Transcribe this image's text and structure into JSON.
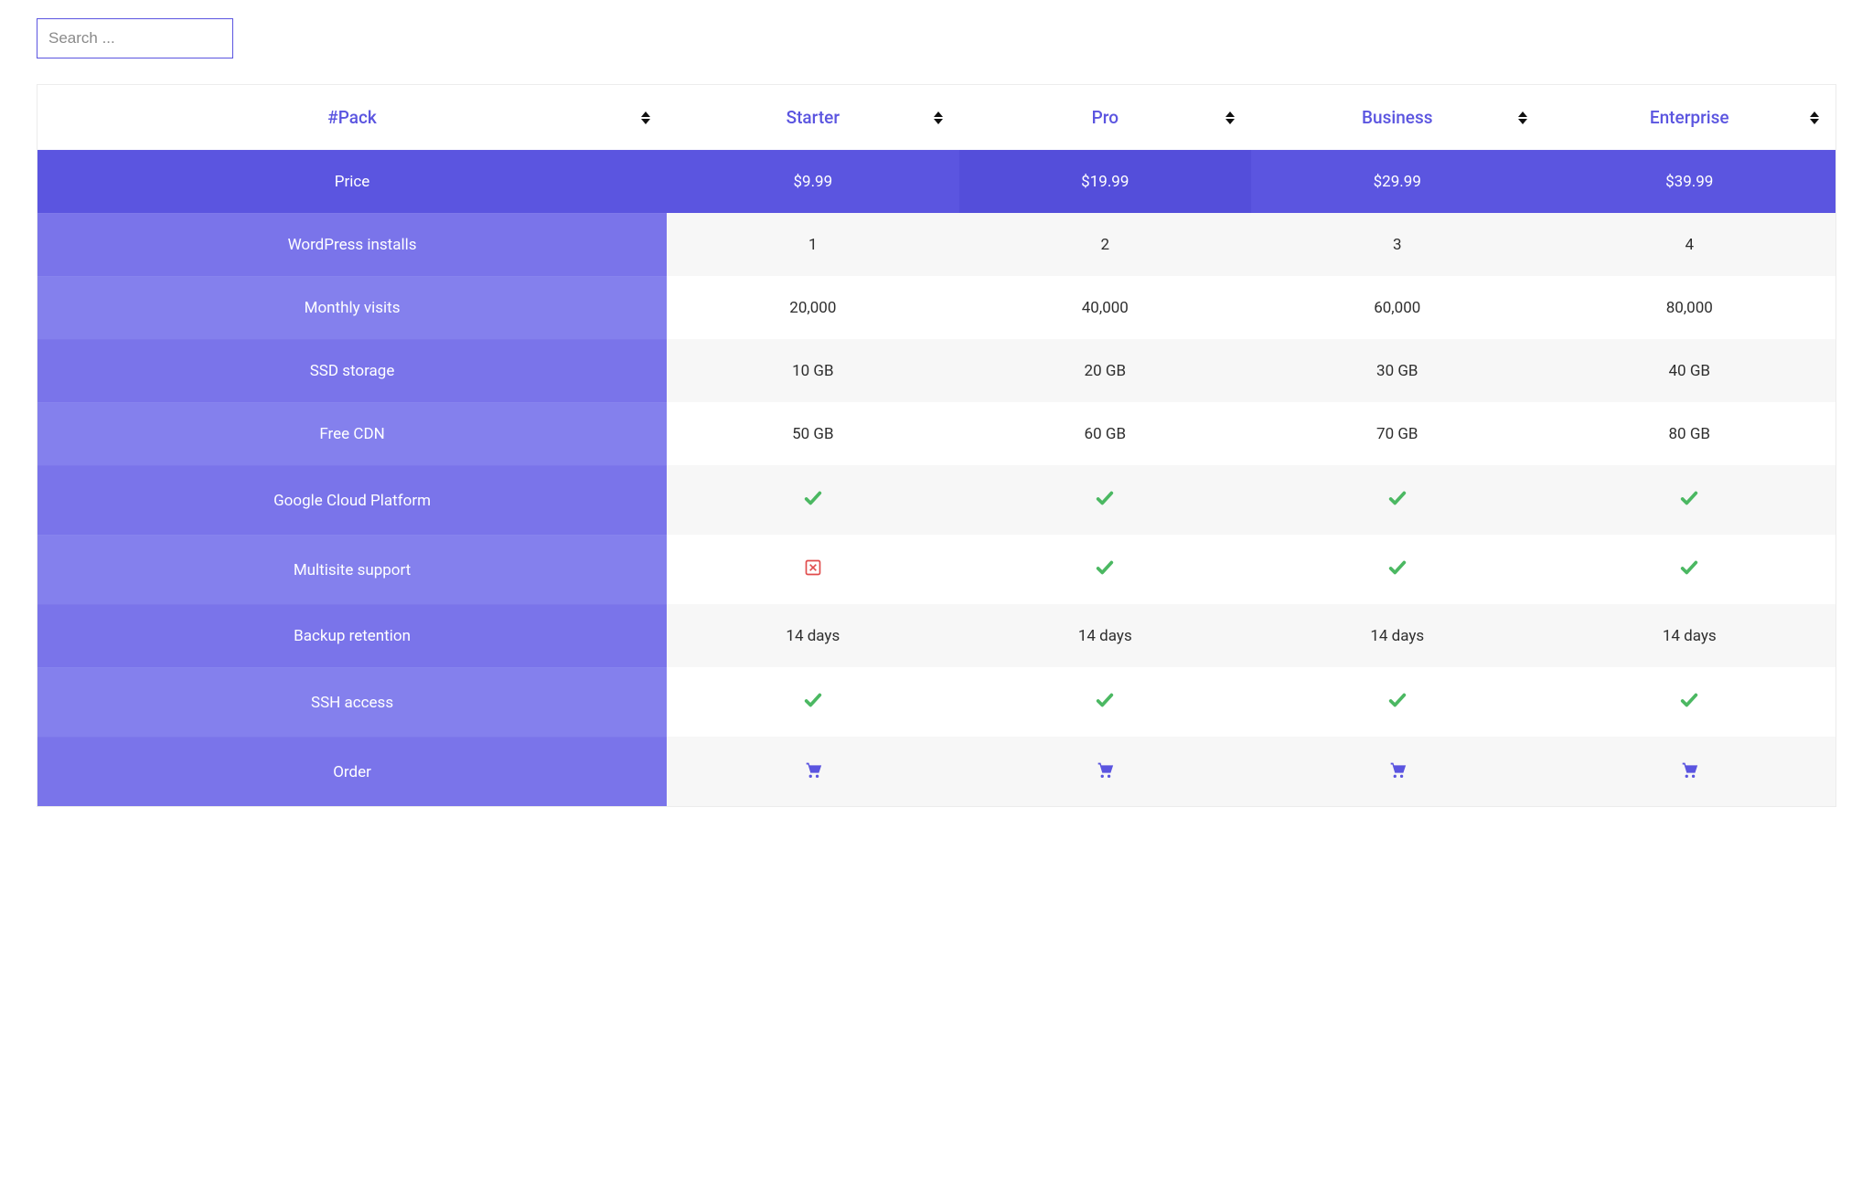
{
  "search": {
    "placeholder": "Search ..."
  },
  "colors": {
    "accent": "#5b55e0",
    "accent_dark": "#544eda",
    "row_label": "#7a74ea",
    "row_label_alt": "#8480ed",
    "stripe_even": "#f7f7f7",
    "stripe_odd": "#ffffff",
    "border": "#ececec",
    "check": "#4bb862",
    "cross": "#e04b4b",
    "cart": "#5b55e0",
    "sort_icon": "#111111",
    "text": "#2e2e2e",
    "header_text": "#5b55e0"
  },
  "table": {
    "type": "pricing-table",
    "headers": [
      "#Pack",
      "Starter",
      "Pro",
      "Business",
      "Enterprise"
    ],
    "label_col_width_pct": 35,
    "rows": [
      {
        "label": "Price",
        "type": "price",
        "values": [
          "$9.99",
          "$19.99",
          "$29.99",
          "$39.99"
        ],
        "highlight_col": 1
      },
      {
        "label": "WordPress installs",
        "type": "text",
        "values": [
          "1",
          "2",
          "3",
          "4"
        ]
      },
      {
        "label": "Monthly visits",
        "type": "text",
        "values": [
          "20,000",
          "40,000",
          "60,000",
          "80,000"
        ]
      },
      {
        "label": "SSD storage",
        "type": "text",
        "values": [
          "10 GB",
          "20 GB",
          "30 GB",
          "40 GB"
        ]
      },
      {
        "label": "Free CDN",
        "type": "text",
        "values": [
          "50 GB",
          "60 GB",
          "70 GB",
          "80 GB"
        ]
      },
      {
        "label": "Google Cloud Platform",
        "type": "bool",
        "values": [
          true,
          true,
          true,
          true
        ]
      },
      {
        "label": "Multisite support",
        "type": "bool",
        "values": [
          false,
          true,
          true,
          true
        ]
      },
      {
        "label": "Backup retention",
        "type": "text",
        "values": [
          "14 days",
          "14 days",
          "14 days",
          "14 days"
        ]
      },
      {
        "label": "SSH access",
        "type": "bool",
        "values": [
          true,
          true,
          true,
          true
        ]
      },
      {
        "label": "Order",
        "type": "cart",
        "values": [
          "cart",
          "cart",
          "cart",
          "cart"
        ]
      }
    ]
  }
}
